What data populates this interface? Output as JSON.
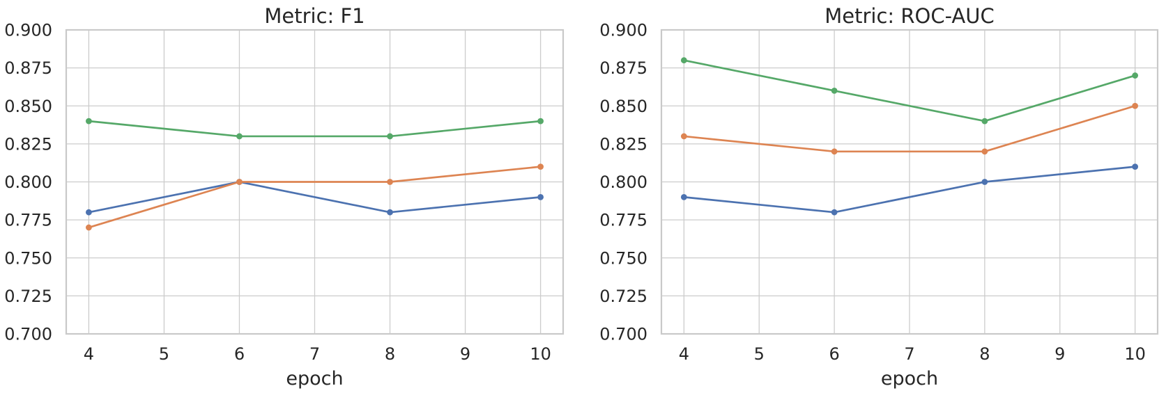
{
  "styles": {
    "background": "#ffffff",
    "grid_color": "#cccccc",
    "spine_color": "#c9c9c9",
    "text_color": "#262626",
    "palette": {
      "blue": "#4C72B0",
      "orange": "#DD8452",
      "green": "#55A868"
    }
  },
  "chart_data": [
    {
      "type": "line",
      "title": "Metric: F1",
      "xlabel": "epoch",
      "ylabel": "",
      "x": [
        4,
        6,
        8,
        10
      ],
      "xticks": [
        4,
        5,
        6,
        7,
        8,
        9,
        10
      ],
      "ytick_labels": [
        "0.700",
        "0.725",
        "0.750",
        "0.775",
        "0.800",
        "0.825",
        "0.850",
        "0.875",
        "0.900"
      ],
      "xlim": [
        3.7,
        10.3
      ],
      "ylim": [
        0.7,
        0.9
      ],
      "grid": true,
      "legend": "none",
      "markers": true,
      "series": [
        {
          "name": "blue",
          "color": "#4C72B0",
          "values": [
            0.78,
            0.8,
            0.78,
            0.79
          ]
        },
        {
          "name": "orange",
          "color": "#DD8452",
          "values": [
            0.77,
            0.8,
            0.8,
            0.81
          ]
        },
        {
          "name": "green",
          "color": "#55A868",
          "values": [
            0.84,
            0.83,
            0.83,
            0.84
          ]
        }
      ]
    },
    {
      "type": "line",
      "title": "Metric: ROC-AUC",
      "xlabel": "epoch",
      "ylabel": "",
      "x": [
        4,
        6,
        8,
        10
      ],
      "xticks": [
        4,
        5,
        6,
        7,
        8,
        9,
        10
      ],
      "ytick_labels": [
        "0.700",
        "0.725",
        "0.750",
        "0.775",
        "0.800",
        "0.825",
        "0.850",
        "0.875",
        "0.900"
      ],
      "xlim": [
        3.7,
        10.3
      ],
      "ylim": [
        0.7,
        0.9
      ],
      "grid": true,
      "legend": "none",
      "markers": true,
      "series": [
        {
          "name": "blue",
          "color": "#4C72B0",
          "values": [
            0.79,
            0.78,
            0.8,
            0.81
          ]
        },
        {
          "name": "orange",
          "color": "#DD8452",
          "values": [
            0.83,
            0.82,
            0.82,
            0.85
          ]
        },
        {
          "name": "green",
          "color": "#55A868",
          "values": [
            0.88,
            0.86,
            0.84,
            0.87
          ]
        }
      ]
    }
  ]
}
